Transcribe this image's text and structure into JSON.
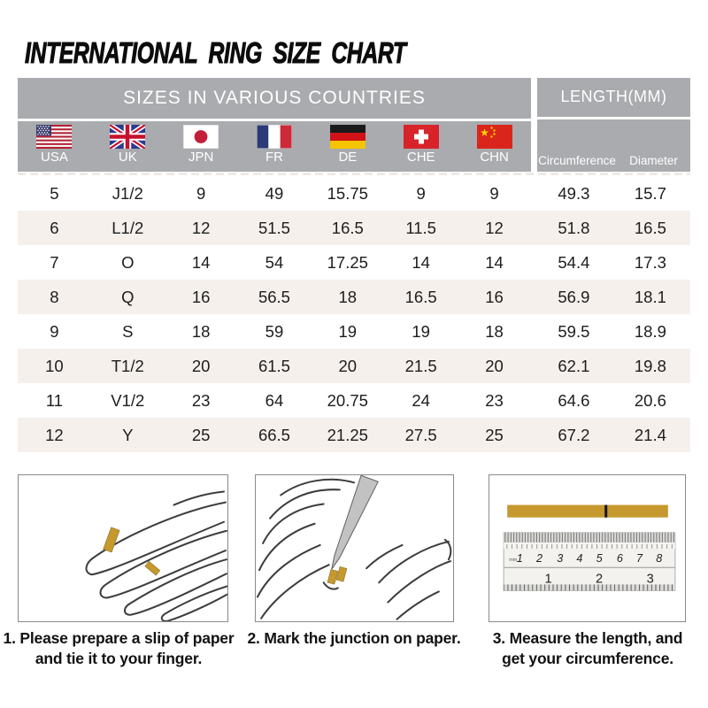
{
  "page": {
    "title": "INTERNATIONAL RING SIZE CHART"
  },
  "colors": {
    "header_bg": "#a9abae",
    "header_text": "#ffffff",
    "row_alt_bg": "#f6f0ec",
    "text": "#1d1d1d",
    "paper_gold": "#c6992f",
    "box_border": "#8a8a8a"
  },
  "table": {
    "group_headers": {
      "sizes": "SIZES IN VARIOUS COUNTRIES",
      "length": "LENGTH(MM)"
    },
    "columns": [
      {
        "label": "USA",
        "flag": "usa-flag"
      },
      {
        "label": "UK",
        "flag": "uk-flag"
      },
      {
        "label": "JPN",
        "flag": "japan-flag"
      },
      {
        "label": "FR",
        "flag": "france-flag"
      },
      {
        "label": "DE",
        "flag": "germany-flag"
      },
      {
        "label": "CHE",
        "flag": "switzerland-flag"
      },
      {
        "label": "CHN",
        "flag": "china-flag"
      }
    ],
    "length_columns": [
      "Circumference",
      "Diameter"
    ]
  },
  "chart_data": {
    "type": "table",
    "title": "INTERNATIONAL RING SIZE CHART",
    "columns": [
      "USA",
      "UK",
      "JPN",
      "FR",
      "DE",
      "CHE",
      "CHN",
      "Circumference",
      "Diameter"
    ],
    "rows": [
      [
        "5",
        "J1/2",
        "9",
        "49",
        "15.75",
        "9",
        "9",
        "49.3",
        "15.7"
      ],
      [
        "6",
        "L1/2",
        "12",
        "51.5",
        "16.5",
        "11.5",
        "12",
        "51.8",
        "16.5"
      ],
      [
        "7",
        "O",
        "14",
        "54",
        "17.25",
        "14",
        "14",
        "54.4",
        "17.3"
      ],
      [
        "8",
        "Q",
        "16",
        "56.5",
        "18",
        "16.5",
        "16",
        "56.9",
        "18.1"
      ],
      [
        "9",
        "S",
        "18",
        "59",
        "19",
        "19",
        "18",
        "59.5",
        "18.9"
      ],
      [
        "10",
        "T1/2",
        "20",
        "61.5",
        "20",
        "21.5",
        "20",
        "62.1",
        "19.8"
      ],
      [
        "11",
        "V1/2",
        "23",
        "64",
        "20.75",
        "24",
        "23",
        "64.6",
        "20.6"
      ],
      [
        "12",
        "Y",
        "25",
        "66.5",
        "21.25",
        "27.5",
        "25",
        "67.2",
        "21.4"
      ]
    ]
  },
  "steps": [
    {
      "number": "1.",
      "line1": "Please prepare a slip of paper",
      "line2": "and tie it to your finger."
    },
    {
      "number": "2.",
      "line1": "Mark the junction on paper.",
      "line2": ""
    },
    {
      "number": "3.",
      "line1": "Measure the length, and",
      "line2": "get your circumference."
    }
  ],
  "ruler": {
    "unit_label": "mm",
    "cm_scale": [
      "1",
      "2",
      "3",
      "4",
      "5",
      "6",
      "7",
      "8"
    ],
    "inch_scale": [
      "1",
      "2",
      "3"
    ]
  }
}
